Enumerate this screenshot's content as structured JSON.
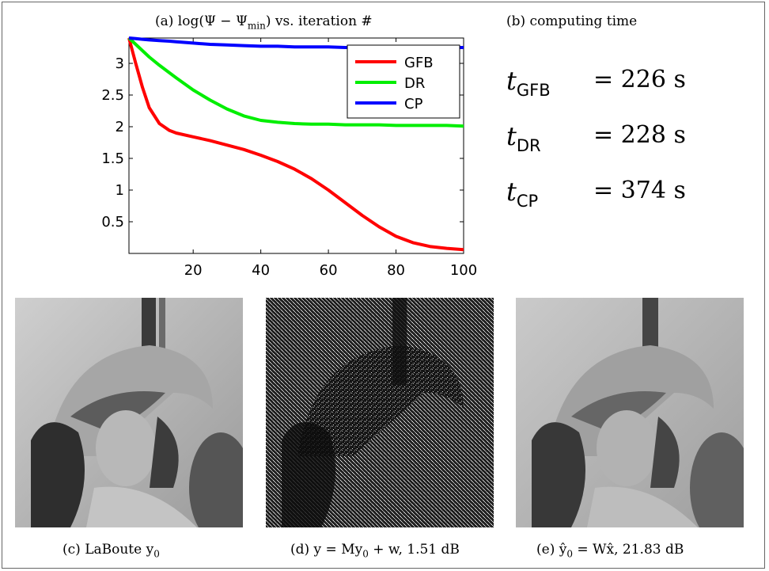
{
  "captions": {
    "a": "(a) log(Ψ − Ψ",
    "a_sub": "min",
    "a_tail": ") vs. iteration #",
    "b": "(b) computing time",
    "c": "(c) LaBoute y",
    "c_sub": "0",
    "d": "(d) y = My",
    "d_sub": "0",
    "d_tail": " + w, 1.51 dB",
    "e": "(e) ŷ",
    "e_sub": "0",
    "e_tail": " = Wx̂, 21.83 dB"
  },
  "timings": [
    {
      "var": "t",
      "sub": "GFB",
      "value": "= 226 s"
    },
    {
      "var": "t",
      "sub": "DR",
      "value": "= 228 s"
    },
    {
      "var": "t",
      "sub": "CP",
      "value": "= 374 s"
    }
  ],
  "chart_data": {
    "type": "line",
    "title": "",
    "xlabel": "",
    "ylabel": "",
    "xlim": [
      1,
      100
    ],
    "ylim": [
      0,
      3.4
    ],
    "xticks": [
      20,
      40,
      60,
      80,
      100
    ],
    "yticks": [
      0.5,
      1,
      1.5,
      2,
      2.5,
      3
    ],
    "grid": false,
    "legend_position": "top-right",
    "colors": {
      "GFB": "#ff0000",
      "DR": "#00ee00",
      "CP": "#0000ff"
    },
    "x": [
      1,
      3,
      5,
      7,
      10,
      13,
      15,
      20,
      25,
      30,
      35,
      40,
      45,
      50,
      55,
      60,
      65,
      70,
      75,
      80,
      85,
      90,
      95,
      100
    ],
    "series": [
      {
        "name": "GFB",
        "values": [
          3.4,
          3.0,
          2.62,
          2.3,
          2.05,
          1.94,
          1.9,
          1.84,
          1.78,
          1.71,
          1.64,
          1.55,
          1.45,
          1.33,
          1.18,
          1.0,
          0.8,
          0.6,
          0.42,
          0.27,
          0.17,
          0.11,
          0.08,
          0.06
        ]
      },
      {
        "name": "DR",
        "values": [
          3.4,
          3.3,
          3.2,
          3.1,
          2.97,
          2.85,
          2.77,
          2.58,
          2.42,
          2.28,
          2.17,
          2.1,
          2.07,
          2.05,
          2.04,
          2.04,
          2.03,
          2.03,
          2.03,
          2.02,
          2.02,
          2.02,
          2.02,
          2.01
        ]
      },
      {
        "name": "CP",
        "values": [
          3.4,
          3.39,
          3.38,
          3.37,
          3.36,
          3.35,
          3.34,
          3.32,
          3.3,
          3.29,
          3.28,
          3.27,
          3.27,
          3.26,
          3.26,
          3.26,
          3.25,
          3.25,
          3.25,
          3.25,
          3.25,
          3.25,
          3.25,
          3.25
        ]
      }
    ]
  },
  "images": [
    {
      "id": "c",
      "name": "original-photo"
    },
    {
      "id": "d",
      "name": "masked-noisy-photo"
    },
    {
      "id": "e",
      "name": "restored-photo"
    }
  ]
}
